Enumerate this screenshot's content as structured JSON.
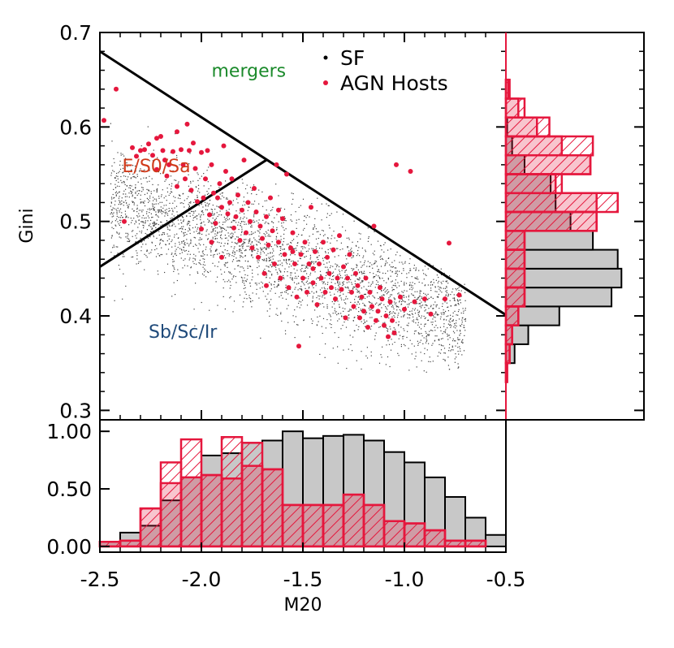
{
  "chart_data": {
    "type": "scatter",
    "xlabel": "M20",
    "ylabel": "Gini",
    "xlim": [
      -2.5,
      -0.5
    ],
    "ylim": [
      0.29,
      0.7
    ],
    "x_ticks": [
      "-2.5",
      "-2.0",
      "-1.5",
      "-1.0",
      "-0.5"
    ],
    "y_ticks": [
      "0.3",
      "0.4",
      "0.5",
      "0.6",
      "0.7"
    ],
    "legend": [
      {
        "symbol": "•",
        "label": "SF",
        "color": "#000000"
      },
      {
        "symbol": "•",
        "label": "AGN Hosts",
        "color": "#e5173d"
      }
    ],
    "region_labels": [
      {
        "text": "mergers",
        "color": "#1b8a2b",
        "m20": -1.95,
        "gini": 0.653
      },
      {
        "text": "E/S0/Sa",
        "color": "#d03a1a",
        "m20": -2.39,
        "gini": 0.552
      },
      {
        "text": "Sb/Sc/Ir",
        "color": "#1f4a7a",
        "m20": -2.26,
        "gini": 0.377
      }
    ],
    "boundary_lines": [
      {
        "from": [
          -2.5,
          0.68
        ],
        "to": [
          -0.5,
          0.401
        ]
      },
      {
        "from": [
          -2.5,
          0.452
        ],
        "to": [
          -1.68,
          0.565
        ]
      }
    ],
    "agn_points": [
      [
        -2.48,
        0.607
      ],
      [
        -2.42,
        0.64
      ],
      [
        -2.38,
        0.5
      ],
      [
        -2.34,
        0.578
      ],
      [
        -2.32,
        0.569
      ],
      [
        -2.3,
        0.575
      ],
      [
        -2.28,
        0.576
      ],
      [
        -2.26,
        0.582
      ],
      [
        -2.24,
        0.57
      ],
      [
        -2.22,
        0.588
      ],
      [
        -2.22,
        0.555
      ],
      [
        -2.2,
        0.59
      ],
      [
        -2.19,
        0.575
      ],
      [
        -2.18,
        0.565
      ],
      [
        -2.17,
        0.548
      ],
      [
        -2.16,
        0.56
      ],
      [
        -2.14,
        0.574
      ],
      [
        -2.12,
        0.537
      ],
      [
        -2.12,
        0.595
      ],
      [
        -2.1,
        0.576
      ],
      [
        -2.09,
        0.56
      ],
      [
        -2.08,
        0.545
      ],
      [
        -2.07,
        0.603
      ],
      [
        -2.06,
        0.575
      ],
      [
        -2.05,
        0.533
      ],
      [
        -2.04,
        0.583
      ],
      [
        -2.03,
        0.556
      ],
      [
        -2.02,
        0.521
      ],
      [
        -2.0,
        0.573
      ],
      [
        -1.99,
        0.525
      ],
      [
        -1.98,
        0.545
      ],
      [
        -1.97,
        0.575
      ],
      [
        -1.96,
        0.507
      ],
      [
        -1.95,
        0.56
      ],
      [
        -1.94,
        0.53
      ],
      [
        -1.93,
        0.498
      ],
      [
        -1.92,
        0.525
      ],
      [
        -1.91,
        0.54
      ],
      [
        -1.9,
        0.515
      ],
      [
        -1.89,
        0.58
      ],
      [
        -1.88,
        0.553
      ],
      [
        -1.87,
        0.508
      ],
      [
        -1.86,
        0.52
      ],
      [
        -1.85,
        0.545
      ],
      [
        -1.84,
        0.493
      ],
      [
        -1.83,
        0.505
      ],
      [
        -1.82,
        0.528
      ],
      [
        -1.81,
        0.48
      ],
      [
        -1.8,
        0.512
      ],
      [
        -1.79,
        0.565
      ],
      [
        -1.78,
        0.488
      ],
      [
        -1.77,
        0.52
      ],
      [
        -1.76,
        0.5
      ],
      [
        -1.75,
        0.472
      ],
      [
        -1.74,
        0.535
      ],
      [
        -1.73,
        0.51
      ],
      [
        -1.72,
        0.462
      ],
      [
        -1.71,
        0.495
      ],
      [
        -1.7,
        0.482
      ],
      [
        -1.69,
        0.445
      ],
      [
        -1.68,
        0.505
      ],
      [
        -1.67,
        0.475
      ],
      [
        -1.66,
        0.525
      ],
      [
        -1.65,
        0.49
      ],
      [
        -1.64,
        0.455
      ],
      [
        -1.63,
        0.56
      ],
      [
        -1.62,
        0.478
      ],
      [
        -1.61,
        0.44
      ],
      [
        -1.6,
        0.503
      ],
      [
        -1.59,
        0.465
      ],
      [
        -1.58,
        0.55
      ],
      [
        -1.57,
        0.43
      ],
      [
        -1.56,
        0.472
      ],
      [
        -1.55,
        0.488
      ],
      [
        -1.54,
        0.455
      ],
      [
        -1.53,
        0.42
      ],
      [
        -1.52,
        0.368
      ],
      [
        -1.51,
        0.465
      ],
      [
        -1.5,
        0.44
      ],
      [
        -1.49,
        0.478
      ],
      [
        -1.48,
        0.425
      ],
      [
        -1.47,
        0.455
      ],
      [
        -1.46,
        0.515
      ],
      [
        -1.45,
        0.435
      ],
      [
        -1.44,
        0.468
      ],
      [
        -1.43,
        0.412
      ],
      [
        -1.42,
        0.455
      ],
      [
        -1.41,
        0.44
      ],
      [
        -1.4,
        0.478
      ],
      [
        -1.39,
        0.425
      ],
      [
        -1.38,
        0.462
      ],
      [
        -1.37,
        0.445
      ],
      [
        -1.36,
        0.43
      ],
      [
        -1.35,
        0.47
      ],
      [
        -1.34,
        0.418
      ],
      [
        -1.33,
        0.44
      ],
      [
        -1.32,
        0.485
      ],
      [
        -1.31,
        0.428
      ],
      [
        -1.3,
        0.452
      ],
      [
        -1.29,
        0.398
      ],
      [
        -1.28,
        0.44
      ],
      [
        -1.27,
        0.465
      ],
      [
        -1.26,
        0.425
      ],
      [
        -1.25,
        0.41
      ],
      [
        -1.24,
        0.445
      ],
      [
        -1.23,
        0.432
      ],
      [
        -1.22,
        0.398
      ],
      [
        -1.21,
        0.42
      ],
      [
        -1.2,
        0.405
      ],
      [
        -1.19,
        0.44
      ],
      [
        -1.18,
        0.388
      ],
      [
        -1.17,
        0.425
      ],
      [
        -1.16,
        0.41
      ],
      [
        -1.15,
        0.495
      ],
      [
        -1.14,
        0.395
      ],
      [
        -1.13,
        0.405
      ],
      [
        -1.12,
        0.43
      ],
      [
        -1.11,
        0.418
      ],
      [
        -1.1,
        0.39
      ],
      [
        -1.09,
        0.4
      ],
      [
        -1.08,
        0.378
      ],
      [
        -1.07,
        0.415
      ],
      [
        -1.06,
        0.395
      ],
      [
        -1.05,
        0.382
      ],
      [
        -1.04,
        0.56
      ],
      [
        -1.02,
        0.42
      ],
      [
        -1.0,
        0.407
      ],
      [
        -0.97,
        0.553
      ],
      [
        -0.95,
        0.415
      ],
      [
        -0.9,
        0.418
      ],
      [
        -0.87,
        0.402
      ],
      [
        -0.8,
        0.418
      ],
      [
        -0.78,
        0.477
      ],
      [
        -0.73,
        0.422
      ],
      [
        -1.9,
        0.462
      ],
      [
        -1.95,
        0.478
      ],
      [
        -2.0,
        0.492
      ],
      [
        -1.62,
        0.512
      ],
      [
        -1.55,
        0.468
      ],
      [
        -1.45,
        0.45
      ],
      [
        -1.68,
        0.432
      ]
    ],
    "histogram_m20": {
      "bin_edges": [
        -2.5,
        -2.4,
        -2.3,
        -2.2,
        -2.1,
        -2.0,
        -1.9,
        -1.8,
        -1.7,
        -1.6,
        -1.5,
        -1.4,
        -1.3,
        -1.2,
        -1.1,
        -1.0,
        -0.9,
        -0.8,
        -0.7,
        -0.6,
        -0.5
      ],
      "ylim": [
        -0.05,
        1.1
      ],
      "y_ticks": [
        "0.00",
        "0.50",
        "1.00"
      ],
      "sf": [
        0.04,
        0.12,
        0.18,
        0.4,
        0.6,
        0.79,
        0.81,
        0.9,
        0.92,
        1.0,
        0.94,
        0.96,
        0.97,
        0.92,
        0.82,
        0.73,
        0.6,
        0.43,
        0.25,
        0.1
      ],
      "agn": [
        0.04,
        0.05,
        0.33,
        0.55,
        0.6,
        0.62,
        0.59,
        0.7,
        0.67,
        0.36,
        0.36,
        0.36,
        0.45,
        0.36,
        0.22,
        0.2,
        0.14,
        0.05,
        0.05,
        0.0
      ],
      "agn_peaks": [
        0,
        0,
        0,
        0.73,
        0.93,
        0.62,
        0.95,
        0.9,
        0.67,
        0.36,
        0.36,
        0.36,
        0.45,
        0.36,
        0.22,
        0.2,
        0.14,
        0.05,
        0.05,
        0.0
      ]
    },
    "histogram_gini": {
      "bin_edges": [
        0.33,
        0.35,
        0.37,
        0.39,
        0.41,
        0.43,
        0.45,
        0.47,
        0.49,
        0.51,
        0.53,
        0.55,
        0.57,
        0.59,
        0.61,
        0.63,
        0.65
      ],
      "sf": [
        0.01,
        0.07,
        0.18,
        0.43,
        0.85,
        0.93,
        0.9,
        0.7,
        0.52,
        0.4,
        0.36,
        0.15,
        0.05,
        0.01,
        0.0,
        0.0
      ],
      "agn": [
        0.01,
        0.03,
        0.05,
        0.1,
        0.15,
        0.15,
        0.15,
        0.15,
        0.73,
        0.73,
        0.4,
        0.68,
        0.45,
        0.25,
        0.1,
        0.02
      ],
      "agn_peaks": [
        0.01,
        0.03,
        0.05,
        0.1,
        0.15,
        0.15,
        0.15,
        0.15,
        0.73,
        0.9,
        0.45,
        0.68,
        0.7,
        0.35,
        0.15,
        0.03
      ]
    },
    "colors": {
      "sf_fill": "#c8c8c8",
      "agn": "#e5173d",
      "sf_points": "#404040",
      "line": "#000000"
    }
  }
}
